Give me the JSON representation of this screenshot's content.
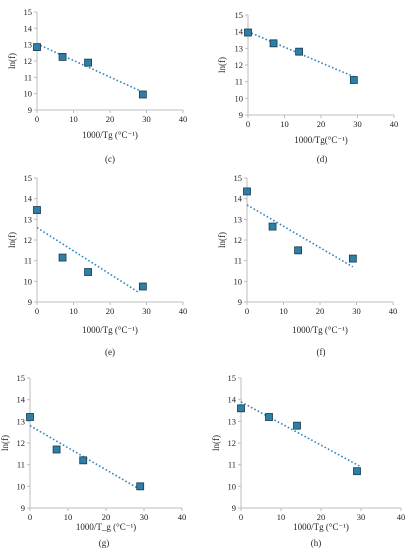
{
  "chart_data": [
    {
      "panel": "",
      "type": "scatter",
      "title": "",
      "xlabel": "1000/Tg (°C⁻¹)",
      "ylabel": "ln(f)",
      "xlim": [
        0,
        40
      ],
      "ylim": [
        9,
        15
      ],
      "xticks": [
        0,
        10,
        20,
        30,
        40
      ],
      "yticks": [
        9,
        10,
        11,
        12,
        13,
        14,
        15
      ],
      "points": [
        {
          "x": 0,
          "y": 12.85
        },
        {
          "x": 7,
          "y": 12.25
        },
        {
          "x": 14,
          "y": 11.9
        },
        {
          "x": 29,
          "y": 9.95
        }
      ],
      "trendline": {
        "x": [
          0,
          29
        ],
        "y": [
          13.05,
          10.1
        ]
      },
      "marker_color": "#2d7fa8",
      "trend_color": "#2e86c1"
    },
    {
      "panel": "",
      "type": "scatter",
      "title": "",
      "xlabel": "1000/Tg(°C⁻¹)",
      "ylabel": "ln(f)",
      "xlim": [
        0,
        40
      ],
      "ylim": [
        9,
        15
      ],
      "xticks": [
        0,
        10,
        20,
        30,
        40
      ],
      "yticks": [
        9,
        10,
        11,
        12,
        13,
        14,
        15
      ],
      "points": [
        {
          "x": 0,
          "y": 13.95
        },
        {
          "x": 7,
          "y": 13.3
        },
        {
          "x": 14,
          "y": 12.8
        },
        {
          "x": 29,
          "y": 11.1
        }
      ],
      "trendline": {
        "x": [
          0,
          29
        ],
        "y": [
          14.0,
          11.3
        ]
      },
      "marker_color": "#2d7fa8",
      "trend_color": "#2e86c1"
    },
    {
      "panel": "(c)",
      "type": "scatter",
      "title": "",
      "xlabel": "1000/Tg (°C⁻¹)",
      "ylabel": "ln(f)",
      "xlim": [
        0,
        40
      ],
      "ylim": [
        9,
        15
      ],
      "xticks": [
        0,
        10,
        20,
        30,
        40
      ],
      "yticks": [
        9,
        10,
        11,
        12,
        13,
        14,
        15
      ],
      "points": [
        {
          "x": 0,
          "y": 13.45
        },
        {
          "x": 7,
          "y": 11.15
        },
        {
          "x": 14,
          "y": 10.45
        },
        {
          "x": 29,
          "y": 9.75
        }
      ],
      "trendline": {
        "x": [
          0,
          28
        ],
        "y": [
          12.6,
          9.45
        ]
      },
      "marker_color": "#2d7fa8",
      "trend_color": "#2e86c1"
    },
    {
      "panel": "(d)",
      "type": "scatter",
      "title": "",
      "xlabel": "1000/Tg (°C⁻¹)",
      "ylabel": "ln(f)",
      "xlim": [
        0,
        40
      ],
      "ylim": [
        9,
        15
      ],
      "xticks": [
        0,
        10,
        20,
        30,
        40
      ],
      "yticks": [
        9,
        10,
        11,
        12,
        13,
        14,
        15
      ],
      "points": [
        {
          "x": 0,
          "y": 14.35
        },
        {
          "x": 7,
          "y": 12.65
        },
        {
          "x": 14,
          "y": 11.5
        },
        {
          "x": 29,
          "y": 11.1
        }
      ],
      "trendline": {
        "x": [
          0,
          29
        ],
        "y": [
          13.7,
          10.7
        ]
      },
      "marker_color": "#2d7fa8",
      "trend_color": "#2e86c1"
    },
    {
      "panel": "(e)",
      "type": "scatter",
      "title": "",
      "xlabel": "1000/T_g (°C⁻¹)",
      "ylabel": "ln(f)",
      "xlim": [
        0,
        40
      ],
      "ylim": [
        9,
        15
      ],
      "xticks": [
        0,
        10,
        20,
        30,
        40
      ],
      "yticks": [
        9,
        10,
        11,
        12,
        13,
        14,
        15
      ],
      "points": [
        {
          "x": 0,
          "y": 13.2
        },
        {
          "x": 7,
          "y": 11.7
        },
        {
          "x": 14,
          "y": 11.2
        },
        {
          "x": 29,
          "y": 10.0
        }
      ],
      "trendline": {
        "x": [
          0,
          29
        ],
        "y": [
          12.8,
          9.85
        ]
      },
      "marker_color": "#2d7fa8",
      "trend_color": "#2e86c1"
    },
    {
      "panel": "(f)",
      "type": "scatter",
      "title": "",
      "xlabel": "1000/Tg (°C⁻¹)",
      "ylabel": "ln(f)",
      "xlim": [
        0,
        40
      ],
      "ylim": [
        9,
        15
      ],
      "xticks": [
        0,
        10,
        20,
        30,
        40
      ],
      "yticks": [
        9,
        10,
        11,
        12,
        13,
        14,
        15
      ],
      "points": [
        {
          "x": 0,
          "y": 13.6
        },
        {
          "x": 7,
          "y": 13.2
        },
        {
          "x": 14,
          "y": 12.8
        },
        {
          "x": 29,
          "y": 10.7
        }
      ],
      "trendline": {
        "x": [
          0,
          30
        ],
        "y": [
          13.9,
          10.9
        ]
      },
      "marker_color": "#2d7fa8",
      "trend_color": "#2e86c1"
    }
  ],
  "panel_labels": [
    "(c)",
    "(d)",
    "(e)",
    "(f)",
    "(g)",
    "(h)"
  ]
}
